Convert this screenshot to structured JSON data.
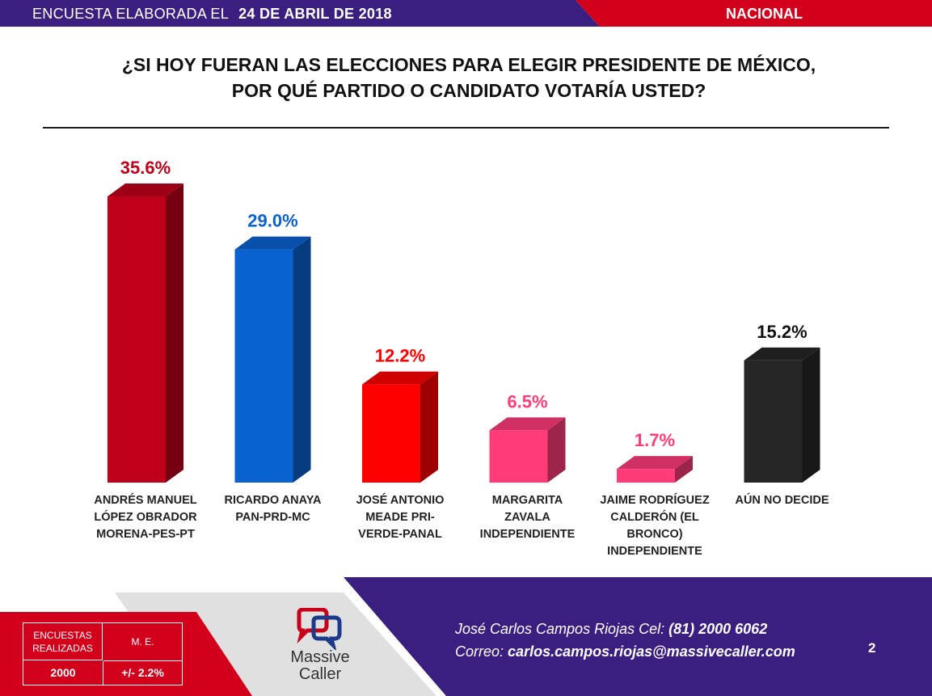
{
  "header": {
    "survey_prefix": "ENCUESTA ELABORADA EL",
    "date": "24 DE ABRIL DE 2018",
    "scope": "NACIONAL"
  },
  "question": {
    "line1": "¿SI HOY FUERAN LAS ELECCIONES PARA ELEGIR PRESIDENTE DE MÉXICO,",
    "line2": "POR QUÉ PARTIDO O CANDIDATO VOTARÍA USTED?"
  },
  "chart_data": {
    "type": "bar",
    "title": "¿SI HOY FUERAN LAS ELECCIONES PARA ELEGIR PRESIDENTE DE MÉXICO, POR QUÉ PARTIDO O CANDIDATO VOTARÍA USTED?",
    "categories": [
      [
        "ANDRÉS MANUEL",
        "LÓPEZ OBRADOR",
        "MORENA-PES-PT"
      ],
      [
        "RICARDO ANAYA",
        "PAN-PRD-MC"
      ],
      [
        "JOSÉ ANTONIO",
        "MEADE PRI-",
        "VERDE-PANAL"
      ],
      [
        "MARGARITA",
        "ZAVALA",
        "INDEPENDIENTE"
      ],
      [
        "JAIME RODRÍGUEZ",
        "CALDERÓN (EL",
        "BRONCO)",
        "INDEPENDIENTE"
      ],
      [
        "AÚN NO DECIDE"
      ]
    ],
    "values": [
      35.6,
      29.0,
      12.2,
      6.5,
      1.7,
      15.2
    ],
    "value_labels": [
      "35.6%",
      "29.0%",
      "12.2%",
      "6.5%",
      "1.7%",
      "15.2%"
    ],
    "colors": [
      "#c0001a",
      "#0a62d0",
      "#ff0000",
      "#ff3b78",
      "#ff3b78",
      "#262626"
    ],
    "label_colors": [
      "#c0001a",
      "#0a62d0",
      "#ff0000",
      "#ff3b78",
      "#ff3b78",
      "#111111"
    ],
    "ylim": [
      0,
      36
    ],
    "grid": false,
    "legend": "none",
    "style": "3d-columns"
  },
  "footer": {
    "stats_header_1": "ENCUESTAS REALIZADAS",
    "stats_header_1a": "ENCUESTAS",
    "stats_header_1b": "REALIZADAS",
    "stats_header_2": "M. E.",
    "stats_value_1": "2000",
    "stats_value_2": "+/- 2.2%",
    "logo_line1": "Massive",
    "logo_line2": "Caller",
    "contact_name": "José Carlos Campos Riojas Cel:",
    "contact_phone": "(81) 2000 6062",
    "contact_mail_label": "Correo:",
    "contact_email": "carlos.campos.riojas@massivecaller.com",
    "page_number": "2"
  },
  "colors": {
    "header_purple": "#3b1f80",
    "header_red": "#d3001c",
    "footer_purple": "#3b1f80",
    "footer_red": "#d3001c"
  }
}
